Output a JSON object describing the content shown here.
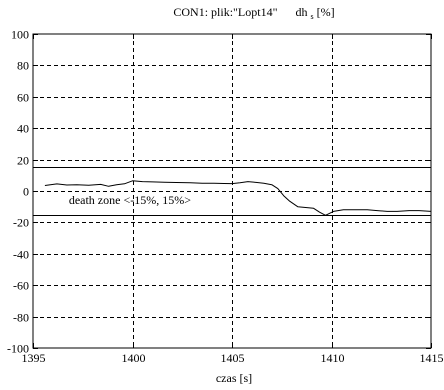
{
  "chart_data": {
    "type": "line",
    "title_main": "CON1: plik:\"Lopt14\"",
    "title_var": "dh",
    "title_sub": "s",
    "title_unit": "[%]",
    "xlabel": "czas [s]",
    "ylabel": "",
    "xlim": [
      1395,
      1415
    ],
    "ylim": [
      -100,
      100
    ],
    "x_ticks": [
      1395,
      1400,
      1405,
      1410,
      1415
    ],
    "y_ticks": [
      100,
      80,
      60,
      40,
      20,
      0,
      -20,
      -40,
      -60,
      -80,
      -100
    ],
    "grid": true,
    "grid_color": "#000000",
    "line_color": "#000000",
    "background_color": "#ffffff",
    "reference_lines": [
      {
        "y": 15
      },
      {
        "y": -15
      }
    ],
    "annotation": {
      "text": "death  zone <-15%, 15%>",
      "x": 1396.8,
      "y": -5.8
    },
    "series": [
      {
        "x": [
          1395.6,
          1396.2,
          1396.7,
          1397.2,
          1397.8,
          1398.4,
          1398.8,
          1399.2,
          1399.6,
          1400.0,
          1400.5,
          1401.0,
          1401.6,
          1402.2,
          1402.9,
          1403.5,
          1404.1,
          1404.6,
          1405.0,
          1405.4,
          1405.8,
          1406.2,
          1406.6,
          1407.0,
          1407.3,
          1407.6,
          1407.9,
          1408.3,
          1408.7,
          1409.1,
          1409.4,
          1409.7,
          1410.1,
          1410.6,
          1411.2,
          1411.8,
          1412.3,
          1412.8,
          1413.3,
          1413.9,
          1414.4,
          1415.0
        ],
        "y": [
          3.5,
          4.5,
          3.8,
          4.0,
          3.6,
          4.2,
          3.0,
          4.0,
          4.6,
          6.5,
          6.0,
          5.8,
          5.6,
          5.4,
          5.2,
          5.0,
          4.9,
          4.8,
          4.7,
          5.2,
          6.0,
          5.5,
          4.9,
          4.0,
          1.5,
          -3.0,
          -6.5,
          -10.0,
          -10.5,
          -11.0,
          -13.5,
          -15.5,
          -13.0,
          -12.0,
          -12.0,
          -12.0,
          -12.5,
          -13.0,
          -13.0,
          -12.5,
          -12.5,
          -13.0
        ]
      }
    ]
  }
}
